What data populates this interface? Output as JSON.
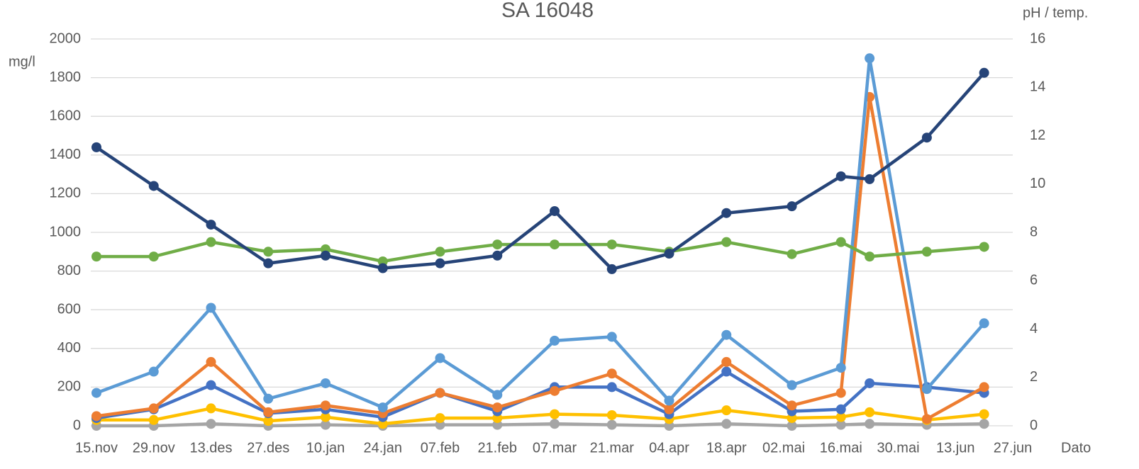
{
  "chart_data": {
    "type": "line",
    "title": "SA 16048",
    "y_label": "mg/l",
    "y2_label": "pH / temp.",
    "x_label": "Dato",
    "x": [
      0,
      14,
      28,
      42,
      56,
      70,
      84,
      98,
      112,
      126,
      140,
      154,
      170,
      182,
      189,
      203,
      217
    ],
    "xlim": [
      0,
      224
    ],
    "xticks": [
      {
        "value": 0,
        "label": "15.nov"
      },
      {
        "value": 14,
        "label": "29.nov"
      },
      {
        "value": 28,
        "label": "13.des"
      },
      {
        "value": 42,
        "label": "27.des"
      },
      {
        "value": 56,
        "label": "10.jan"
      },
      {
        "value": 70,
        "label": "24.jan"
      },
      {
        "value": 84,
        "label": "07.feb"
      },
      {
        "value": 98,
        "label": "21.feb"
      },
      {
        "value": 112,
        "label": "07.mar"
      },
      {
        "value": 126,
        "label": "21.mar"
      },
      {
        "value": 140,
        "label": "04.apr"
      },
      {
        "value": 154,
        "label": "18.apr"
      },
      {
        "value": 168,
        "label": "02.mai"
      },
      {
        "value": 182,
        "label": "16.mai"
      },
      {
        "value": 196,
        "label": "30.mai"
      },
      {
        "value": 210,
        "label": "13.jun"
      },
      {
        "value": 224,
        "label": "27.jun"
      }
    ],
    "ylim": [
      0,
      2000
    ],
    "yticks": [
      0,
      200,
      400,
      600,
      800,
      1000,
      1200,
      1400,
      1600,
      1800,
      2000
    ],
    "y2lim": [
      0,
      16
    ],
    "y2ticks": [
      0,
      2,
      4,
      6,
      8,
      10,
      12,
      14,
      16
    ],
    "grid": true,
    "series": [
      {
        "color": "#a5a5a5",
        "values": [
          0,
          0,
          10,
          0,
          5,
          0,
          5,
          5,
          10,
          5,
          0,
          10,
          0,
          5,
          10,
          5,
          10
        ]
      },
      {
        "color": "#ffc000",
        "values": [
          30,
          30,
          90,
          25,
          45,
          10,
          40,
          40,
          60,
          55,
          35,
          80,
          40,
          45,
          70,
          30,
          60
        ]
      },
      {
        "color": "#4472c4",
        "values": [
          40,
          85,
          210,
          65,
          85,
          45,
          170,
          75,
          200,
          200,
          60,
          280,
          75,
          85,
          220,
          200,
          170
        ]
      },
      {
        "color": "#ed7d31",
        "values": [
          50,
          90,
          330,
          70,
          105,
          65,
          170,
          95,
          180,
          270,
          85,
          330,
          105,
          170,
          1700,
          35,
          200
        ]
      },
      {
        "color": "#5b9bd5",
        "values": [
          170,
          280,
          610,
          140,
          220,
          95,
          350,
          160,
          440,
          460,
          130,
          470,
          210,
          300,
          1900,
          190,
          530
        ]
      },
      {
        "color": "#70ad47",
        "axis": "y2",
        "values": [
          7.0,
          7.0,
          7.6,
          7.2,
          7.3,
          6.8,
          7.2,
          7.5,
          7.5,
          7.5,
          7.2,
          7.6,
          7.1,
          7.6,
          7.0,
          7.2,
          7.4
        ]
      },
      {
        "color": "#264478",
        "values": [
          1440,
          1240,
          1040,
          840,
          880,
          815,
          840,
          880,
          1110,
          810,
          890,
          1100,
          1135,
          1290,
          1275,
          1490,
          1825
        ]
      }
    ]
  }
}
